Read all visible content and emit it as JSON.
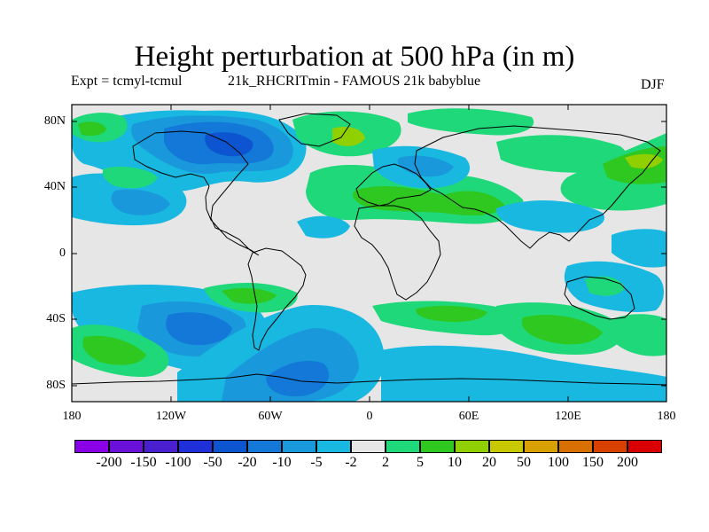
{
  "title": "Height perturbation at 500 hPa (in m)",
  "subtitle_left": "Expt = tcmyl-tcmul",
  "subtitle_mid": "21k_RHCRITmin - FAMOUS 21k babyblue",
  "season": "DJF",
  "map": {
    "projection": "cylindrical equidistant",
    "lon_range": [
      -180,
      180
    ],
    "lat_range": [
      -90,
      90
    ],
    "x_tick_labels": [
      "180",
      "120W",
      "60W",
      "0",
      "60E",
      "120E",
      "180"
    ],
    "y_tick_labels": [
      "80N",
      "40N",
      "0",
      "40S",
      "80S"
    ]
  },
  "colorbar": {
    "labels": [
      "-200",
      "-150",
      "-100",
      "-50",
      "-20",
      "-10",
      "-5",
      "-2",
      "2",
      "5",
      "10",
      "20",
      "50",
      "100",
      "150",
      "200"
    ],
    "colors": [
      "#8a00e6",
      "#6a10d8",
      "#4a1fd0",
      "#2030d8",
      "#0d55d0",
      "#1378d8",
      "#1a98dc",
      "#18b8e0",
      "#e6e6e6",
      "#1fd87a",
      "#2ec820",
      "#90d000",
      "#c8c800",
      "#d8a000",
      "#d87000",
      "#d84000",
      "#d80000"
    ]
  }
}
